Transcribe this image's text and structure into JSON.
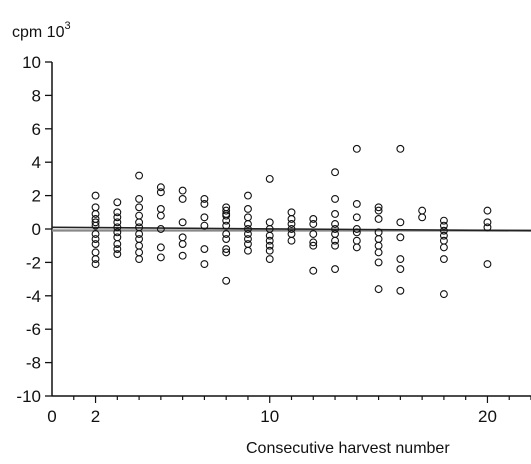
{
  "chart_data": {
    "type": "scatter",
    "title": "",
    "ylabel": "cpm 10",
    "ylabel_exponent": "3",
    "xlabel": "Consecutive harvest number",
    "xlim": [
      0,
      22
    ],
    "ylim": [
      -10,
      10
    ],
    "x_ticks": [
      0,
      2,
      10,
      20
    ],
    "y_ticks": [
      10,
      8,
      6,
      4,
      2,
      0,
      -2,
      -4,
      -6,
      -8,
      -10
    ],
    "grid": false,
    "legend": "none",
    "marker": "open-circle",
    "reference_line": {
      "y": 0,
      "color": "#888888"
    },
    "trend_line": {
      "x": [
        0,
        22
      ],
      "y": [
        0.1,
        -0.1
      ]
    },
    "points": [
      [
        2,
        2.0
      ],
      [
        2,
        1.3
      ],
      [
        2,
        0.6
      ],
      [
        2,
        0.4
      ],
      [
        2,
        0.2
      ],
      [
        2,
        -0.3
      ],
      [
        2,
        -0.6
      ],
      [
        2,
        -0.9
      ],
      [
        2,
        -1.4
      ],
      [
        2,
        -1.8
      ],
      [
        2,
        -2.1
      ],
      [
        2,
        0.9
      ],
      [
        3,
        1.6
      ],
      [
        3,
        0.7
      ],
      [
        3,
        0.4
      ],
      [
        3,
        0.1
      ],
      [
        3,
        -0.2
      ],
      [
        3,
        -0.5
      ],
      [
        3,
        -0.9
      ],
      [
        3,
        -1.2
      ],
      [
        3,
        -1.5
      ],
      [
        3,
        1.0
      ],
      [
        4,
        3.2
      ],
      [
        4,
        1.8
      ],
      [
        4,
        1.3
      ],
      [
        4,
        0.8
      ],
      [
        4,
        0.4
      ],
      [
        4,
        0.1
      ],
      [
        4,
        -0.3
      ],
      [
        4,
        -0.6
      ],
      [
        4,
        -1.0
      ],
      [
        4,
        -1.4
      ],
      [
        4,
        -1.8
      ],
      [
        5,
        2.5
      ],
      [
        5,
        2.2
      ],
      [
        5,
        1.2
      ],
      [
        5,
        0.8
      ],
      [
        5,
        0.0
      ],
      [
        5,
        -1.1
      ],
      [
        5,
        -1.7
      ],
      [
        6,
        2.3
      ],
      [
        6,
        1.8
      ],
      [
        6,
        0.4
      ],
      [
        6,
        -0.5
      ],
      [
        6,
        -0.9
      ],
      [
        6,
        -1.6
      ],
      [
        7,
        1.8
      ],
      [
        7,
        1.5
      ],
      [
        7,
        0.7
      ],
      [
        7,
        0.2
      ],
      [
        7,
        -1.2
      ],
      [
        7,
        -2.1
      ],
      [
        8,
        1.3
      ],
      [
        8,
        1.1
      ],
      [
        8,
        0.8
      ],
      [
        8,
        0.5
      ],
      [
        8,
        0.2
      ],
      [
        8,
        -0.3
      ],
      [
        8,
        -0.6
      ],
      [
        8,
        -1.2
      ],
      [
        8,
        -1.4
      ],
      [
        8,
        -3.1
      ],
      [
        8,
        0.9
      ],
      [
        9,
        2.0
      ],
      [
        9,
        1.2
      ],
      [
        9,
        0.7
      ],
      [
        9,
        0.3
      ],
      [
        9,
        0.0
      ],
      [
        9,
        -0.3
      ],
      [
        9,
        -0.9
      ],
      [
        9,
        -1.3
      ],
      [
        9,
        -0.6
      ],
      [
        10,
        3.0
      ],
      [
        10,
        0.4
      ],
      [
        10,
        0.0
      ],
      [
        10,
        -0.4
      ],
      [
        10,
        -0.7
      ],
      [
        10,
        -1.0
      ],
      [
        10,
        -1.3
      ],
      [
        10,
        -1.8
      ],
      [
        11,
        1.0
      ],
      [
        11,
        0.6
      ],
      [
        11,
        0.3
      ],
      [
        11,
        0.0
      ],
      [
        11,
        -0.3
      ],
      [
        11,
        -0.7
      ],
      [
        12,
        0.6
      ],
      [
        12,
        0.3
      ],
      [
        12,
        -0.3
      ],
      [
        12,
        -0.8
      ],
      [
        12,
        -1.0
      ],
      [
        12,
        -2.5
      ],
      [
        13,
        3.4
      ],
      [
        13,
        1.8
      ],
      [
        13,
        0.9
      ],
      [
        13,
        0.3
      ],
      [
        13,
        0.0
      ],
      [
        13,
        -0.3
      ],
      [
        13,
        -0.7
      ],
      [
        13,
        -1.0
      ],
      [
        13,
        -2.4
      ],
      [
        14,
        4.8
      ],
      [
        14,
        1.5
      ],
      [
        14,
        0.7
      ],
      [
        14,
        0.0
      ],
      [
        14,
        -0.2
      ],
      [
        14,
        -0.7
      ],
      [
        14,
        -1.1
      ],
      [
        15,
        1.3
      ],
      [
        15,
        1.1
      ],
      [
        15,
        0.6
      ],
      [
        15,
        -0.2
      ],
      [
        15,
        -0.6
      ],
      [
        15,
        -1.0
      ],
      [
        15,
        -1.4
      ],
      [
        15,
        -2.0
      ],
      [
        15,
        -3.6
      ],
      [
        16,
        4.8
      ],
      [
        16,
        0.4
      ],
      [
        16,
        -0.5
      ],
      [
        16,
        -1.8
      ],
      [
        16,
        -2.4
      ],
      [
        16,
        -3.7
      ],
      [
        17,
        1.1
      ],
      [
        17,
        0.7
      ],
      [
        18,
        0.5
      ],
      [
        18,
        0.2
      ],
      [
        18,
        -0.1
      ],
      [
        18,
        -0.4
      ],
      [
        18,
        -0.7
      ],
      [
        18,
        -1.1
      ],
      [
        18,
        -1.8
      ],
      [
        18,
        -3.9
      ],
      [
        20,
        1.1
      ],
      [
        20,
        0.4
      ],
      [
        20,
        0.1
      ],
      [
        20,
        -2.1
      ]
    ]
  }
}
